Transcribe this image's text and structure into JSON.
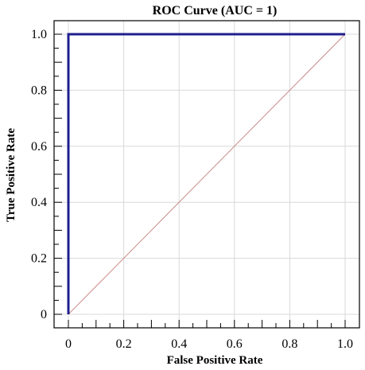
{
  "chart_data": {
    "type": "line",
    "title": "ROC Curve (AUC = 1)",
    "xlabel": "False Positive Rate",
    "ylabel": "True Positive Rate",
    "xlim": [
      0,
      1
    ],
    "ylim": [
      0,
      1
    ],
    "x_ticks": [
      "0",
      "0.2",
      "0.4",
      "0.6",
      "0.8",
      "1.0"
    ],
    "y_ticks": [
      "0",
      "0.2",
      "0.4",
      "0.6",
      "0.8",
      "1.0"
    ],
    "grid": true,
    "series": [
      {
        "x": [
          0,
          0,
          1
        ],
        "y": [
          0,
          1,
          1
        ],
        "color": "#1f1f8f"
      },
      {
        "x": [
          0,
          1
        ],
        "y": [
          0,
          1
        ],
        "color": "#c98a8a"
      }
    ],
    "colors": {
      "grid": "#d9d9d9",
      "axis": "#000000",
      "roc": "#1f1f8f",
      "diagonal": "#c98a8a"
    }
  }
}
